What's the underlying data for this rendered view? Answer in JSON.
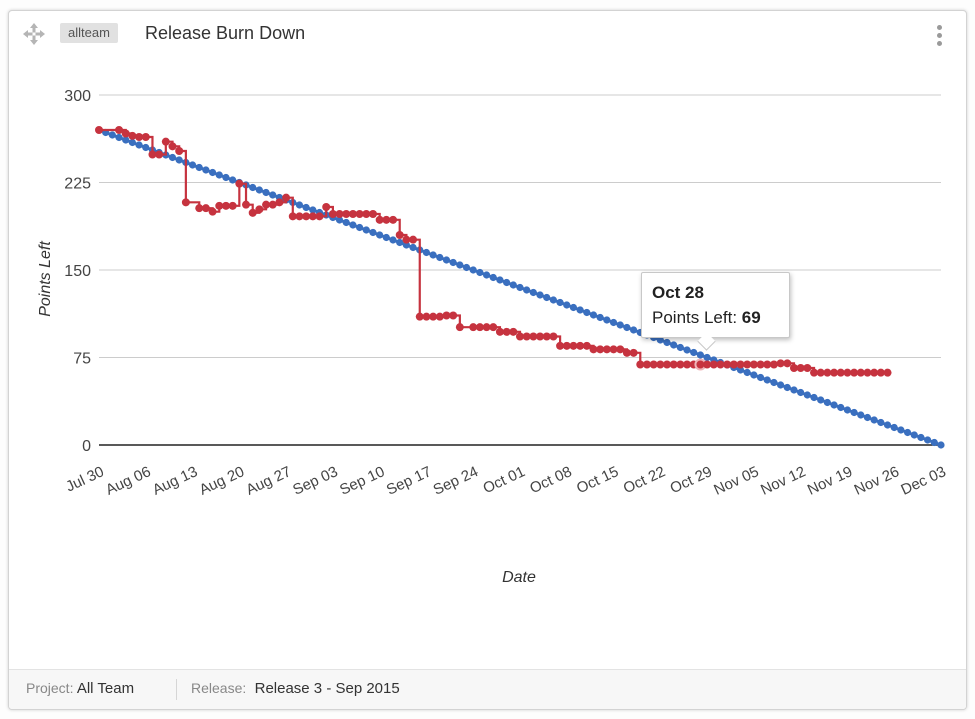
{
  "widget": {
    "team_badge": "allteam",
    "title": "Release Burn Down"
  },
  "footer": {
    "project_label": "Project:",
    "project_value": "All Team",
    "release_label": "Release:",
    "release_value": "Release 3 - Sep 2015"
  },
  "tooltip": {
    "date": "Oct 28",
    "series_label": "Points Left:",
    "value": "69"
  },
  "colors": {
    "ideal": "#3a6fbf",
    "actual": "#c6333f",
    "grid": "#cccccc",
    "axis": "#222222"
  },
  "chart_data": {
    "type": "line",
    "xlabel": "Date",
    "ylabel": "Points Left",
    "ylim": [
      0,
      300
    ],
    "yticks": [
      0,
      75,
      150,
      225,
      300
    ],
    "xlim": [
      "2015-07-30",
      "2015-12-03"
    ],
    "xtick_labels": [
      "Jul 30",
      "Aug 06",
      "Aug 13",
      "Aug 20",
      "Aug 27",
      "Sep 03",
      "Sep 10",
      "Sep 17",
      "Sep 24",
      "Oct 01",
      "Oct 08",
      "Oct 15",
      "Oct 22",
      "Oct 29",
      "Nov 05",
      "Nov 12",
      "Nov 19",
      "Nov 26",
      "Dec 03"
    ],
    "grid": true,
    "highlight": {
      "x": "2015-10-28",
      "y": 69
    },
    "series": [
      {
        "role": "ideal",
        "x": [
          "2015-07-30",
          "2015-12-03"
        ],
        "y": [
          270,
          0
        ],
        "daily_markers": true
      },
      {
        "role": "actual",
        "x": [
          "2015-07-30",
          "2015-08-02",
          "2015-08-03",
          "2015-08-04",
          "2015-08-05",
          "2015-08-06",
          "2015-08-07",
          "2015-08-08",
          "2015-08-09",
          "2015-08-10",
          "2015-08-11",
          "2015-08-12",
          "2015-08-14",
          "2015-08-15",
          "2015-08-16",
          "2015-08-17",
          "2015-08-18",
          "2015-08-19",
          "2015-08-20",
          "2015-08-21",
          "2015-08-22",
          "2015-08-23",
          "2015-08-24",
          "2015-08-25",
          "2015-08-26",
          "2015-08-27",
          "2015-08-28",
          "2015-08-29",
          "2015-08-30",
          "2015-08-31",
          "2015-09-01",
          "2015-09-02",
          "2015-09-03",
          "2015-09-04",
          "2015-09-05",
          "2015-09-06",
          "2015-09-07",
          "2015-09-08",
          "2015-09-09",
          "2015-09-10",
          "2015-09-11",
          "2015-09-12",
          "2015-09-13",
          "2015-09-14",
          "2015-09-15",
          "2015-09-16",
          "2015-09-17",
          "2015-09-18",
          "2015-09-19",
          "2015-09-20",
          "2015-09-21",
          "2015-09-22",
          "2015-09-24",
          "2015-09-25",
          "2015-09-26",
          "2015-09-27",
          "2015-09-28",
          "2015-09-29",
          "2015-09-30",
          "2015-10-01",
          "2015-10-02",
          "2015-10-03",
          "2015-10-04",
          "2015-10-05",
          "2015-10-06",
          "2015-10-07",
          "2015-10-08",
          "2015-10-09",
          "2015-10-10",
          "2015-10-11",
          "2015-10-12",
          "2015-10-13",
          "2015-10-14",
          "2015-10-15",
          "2015-10-16",
          "2015-10-17",
          "2015-10-18",
          "2015-10-19",
          "2015-10-20",
          "2015-10-21",
          "2015-10-22",
          "2015-10-23",
          "2015-10-24",
          "2015-10-25",
          "2015-10-26",
          "2015-10-27",
          "2015-10-28",
          "2015-10-29",
          "2015-10-30",
          "2015-10-31",
          "2015-11-01",
          "2015-11-02",
          "2015-11-03",
          "2015-11-04",
          "2015-11-05",
          "2015-11-06",
          "2015-11-07",
          "2015-11-08",
          "2015-11-09",
          "2015-11-10",
          "2015-11-11",
          "2015-11-12",
          "2015-11-13",
          "2015-11-14",
          "2015-11-15",
          "2015-11-16",
          "2015-11-17",
          "2015-11-18",
          "2015-11-19",
          "2015-11-20",
          "2015-11-21",
          "2015-11-22",
          "2015-11-23",
          "2015-11-24",
          "2015-11-25"
        ],
        "y": [
          270,
          270,
          267,
          265,
          264,
          264,
          249,
          249,
          260,
          256,
          252,
          208,
          203,
          203,
          200,
          205,
          205,
          205,
          224,
          206,
          199,
          202,
          206,
          206,
          208,
          212,
          196,
          196,
          196,
          196,
          196,
          204,
          198,
          198,
          198,
          198,
          198,
          198,
          198,
          193,
          193,
          193,
          180,
          176,
          176,
          110,
          110,
          110,
          110,
          111,
          111,
          101,
          101,
          101,
          101,
          101,
          97,
          97,
          97,
          93,
          93,
          93,
          93,
          93,
          93,
          85,
          85,
          85,
          85,
          85,
          82,
          82,
          82,
          82,
          82,
          79,
          79,
          69,
          69,
          69,
          69,
          69,
          69,
          69,
          69,
          69,
          69,
          69,
          69,
          69,
          69,
          69,
          69,
          69,
          69,
          69,
          69,
          69,
          70,
          70,
          66,
          66,
          66,
          62,
          62,
          62,
          62,
          62,
          62,
          62,
          62,
          62,
          62,
          62,
          62
        ]
      }
    ]
  }
}
